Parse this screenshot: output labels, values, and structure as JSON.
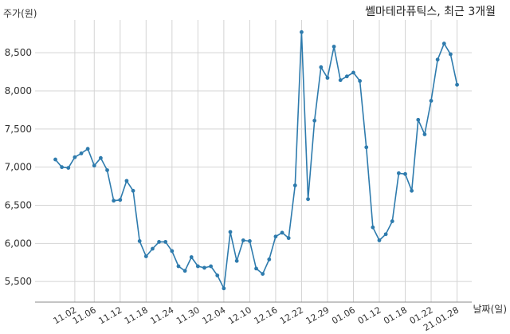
{
  "chart_data": {
    "type": "line",
    "title": "쎌마테라퓨틱스, 최근 3개월",
    "ylabel": "주가(원)",
    "xlabel": "날짜(일)",
    "ylim": [
      5230,
      8930
    ],
    "yticks": [
      5500,
      6000,
      6500,
      7000,
      7500,
      8000,
      8500
    ],
    "ytick_labels": [
      "5,500",
      "6,000",
      "6,500",
      "7,000",
      "7,500",
      "8,000",
      "8,500"
    ],
    "xtick_labels": [
      "11.02",
      "11.06",
      "11.12",
      "11.18",
      "11.24",
      "11.30",
      "12.04",
      "12.10",
      "12.16",
      "12.22",
      "12.29",
      "01.06",
      "01.12",
      "01.18",
      "01.22",
      "21.01.28"
    ],
    "xtick_index": [
      3,
      6,
      10,
      14,
      18,
      22,
      26,
      30,
      34,
      38,
      42,
      46,
      50,
      54,
      58,
      62
    ],
    "grid": true,
    "line_color": "#2e7bad",
    "series": [
      {
        "values": [
          7100,
          7000,
          6990,
          7130,
          7180,
          7240,
          7020,
          7120,
          6960,
          6560,
          6570,
          6820,
          6690,
          6030,
          5830,
          5930,
          6020,
          6020,
          5900,
          5700,
          5640,
          5820,
          5700,
          5680,
          5700,
          5580,
          5410,
          6150,
          5770,
          6040,
          6030,
          5670,
          5600,
          5790,
          6090,
          6140,
          6070,
          6760,
          8770,
          6580,
          7610,
          8310,
          8170,
          8580,
          8140,
          8190,
          8240,
          8130,
          7260,
          6210,
          6040,
          6120,
          6290,
          6920,
          6910,
          6690,
          7620,
          7430,
          7870,
          8410,
          8620,
          8480,
          8080
        ]
      }
    ]
  }
}
